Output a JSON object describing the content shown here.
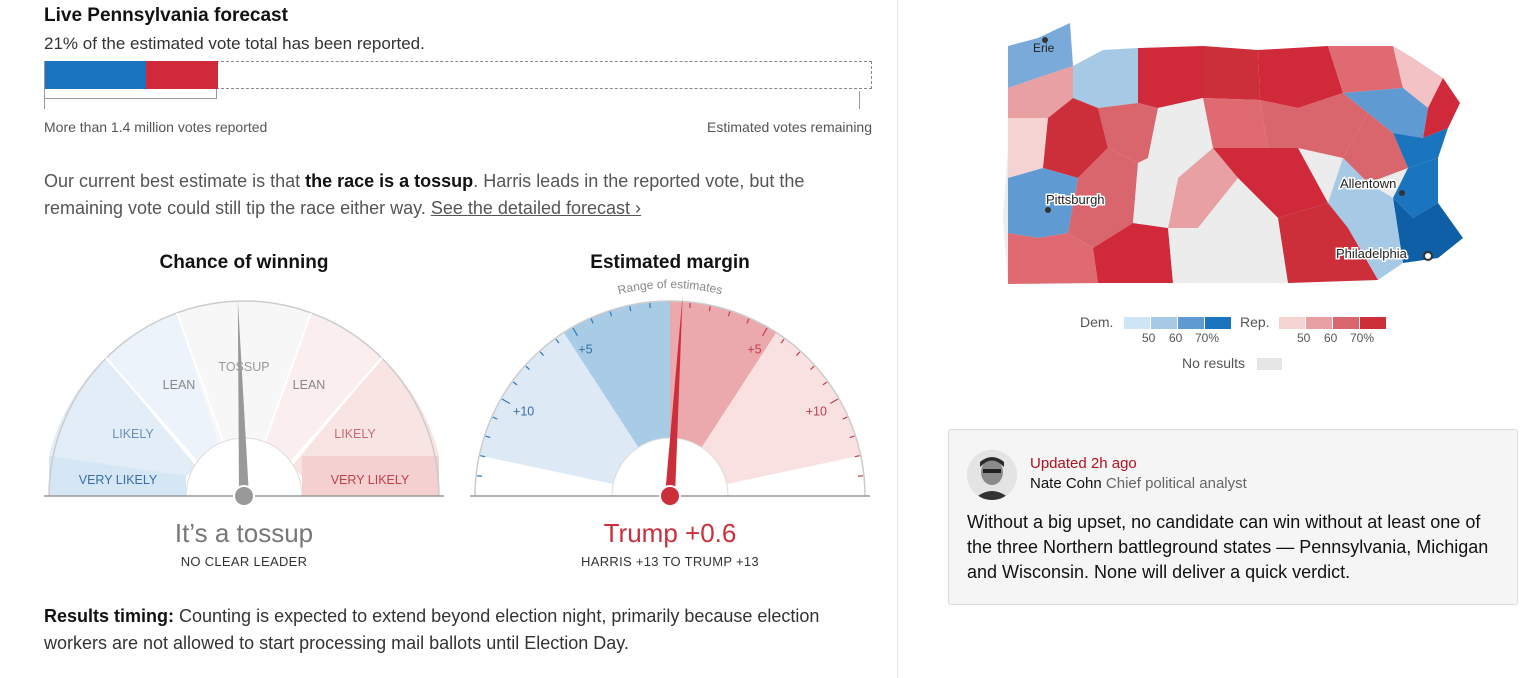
{
  "forecast": {
    "title": "Live Pennsylvania forecast",
    "reported_text": "21% of the estimated vote total has been reported.",
    "reported_pct": 21,
    "dem_share_of_reported": 58,
    "votes_reported_label": "More than 1.4 million votes reported",
    "votes_remaining_label": "Estimated votes remaining",
    "summary_prefix": "Our current best estimate is that ",
    "summary_bold": "the race is a tossup",
    "summary_suffix": ". Harris leads in the reported vote, but the remaining vote could still tip the race either way. ",
    "summary_link": "See the detailed forecast ›"
  },
  "chance_gauge": {
    "title": "Chance of winning",
    "labels": {
      "tossup": "TOSSUP",
      "lean_dem": "LEAN",
      "lean_rep": "LEAN",
      "likely_dem": "LIKELY",
      "likely_rep": "LIKELY",
      "very_likely_dem": "VERY LIKELY",
      "very_likely_rep": "VERY LIKELY"
    },
    "needle_value": 0.49,
    "verdict": "It’s a tossup",
    "subtext": "NO CLEAR LEADER"
  },
  "margin_gauge": {
    "title": "Estimated margin",
    "range_label": "Range of estimates",
    "dem_tick_5": "+5",
    "dem_tick_10": "+10",
    "rep_tick_5": "+5",
    "rep_tick_10": "+10",
    "needle_margin": 0.6,
    "range_low": -13,
    "range_high": 13,
    "verdict": "Trump +0.6",
    "subtext": "HARRIS +13 TO TRUMP +13"
  },
  "map": {
    "cities": {
      "erie": "Erie",
      "pittsburgh": "Pittsburgh",
      "allentown": "Allentown",
      "philadelphia": "Philadelphia"
    }
  },
  "legend": {
    "dem_label": "Dem.",
    "rep_label": "Rep.",
    "dem_ticks": [
      "50",
      "60",
      "70%"
    ],
    "rep_ticks": [
      "50",
      "60",
      "70%"
    ],
    "no_results": "No results",
    "dem_colors": [
      "#cfe6f7",
      "#a6c9e6",
      "#5f9bd2",
      "#1a74be"
    ],
    "rep_colors": [
      "#f6d3d3",
      "#e8a0a3",
      "#d9666d",
      "#cc2f3a"
    ],
    "no_results_color": "#e6e6e6"
  },
  "analyst": {
    "updated": "Updated 2h ago",
    "name": "Nate Cohn",
    "role": "Chief political analyst",
    "text": "Without a big upset, no candidate can win without at least one of the three Northern battleground states — Pennsylvania, Michigan and Wisconsin. None will deliver a quick verdict."
  },
  "timing": {
    "label": "Results timing:",
    "text": " Counting is expected to extend beyond election night, primarily because election workers are not allowed to start processing mail ballots until Election Day."
  }
}
